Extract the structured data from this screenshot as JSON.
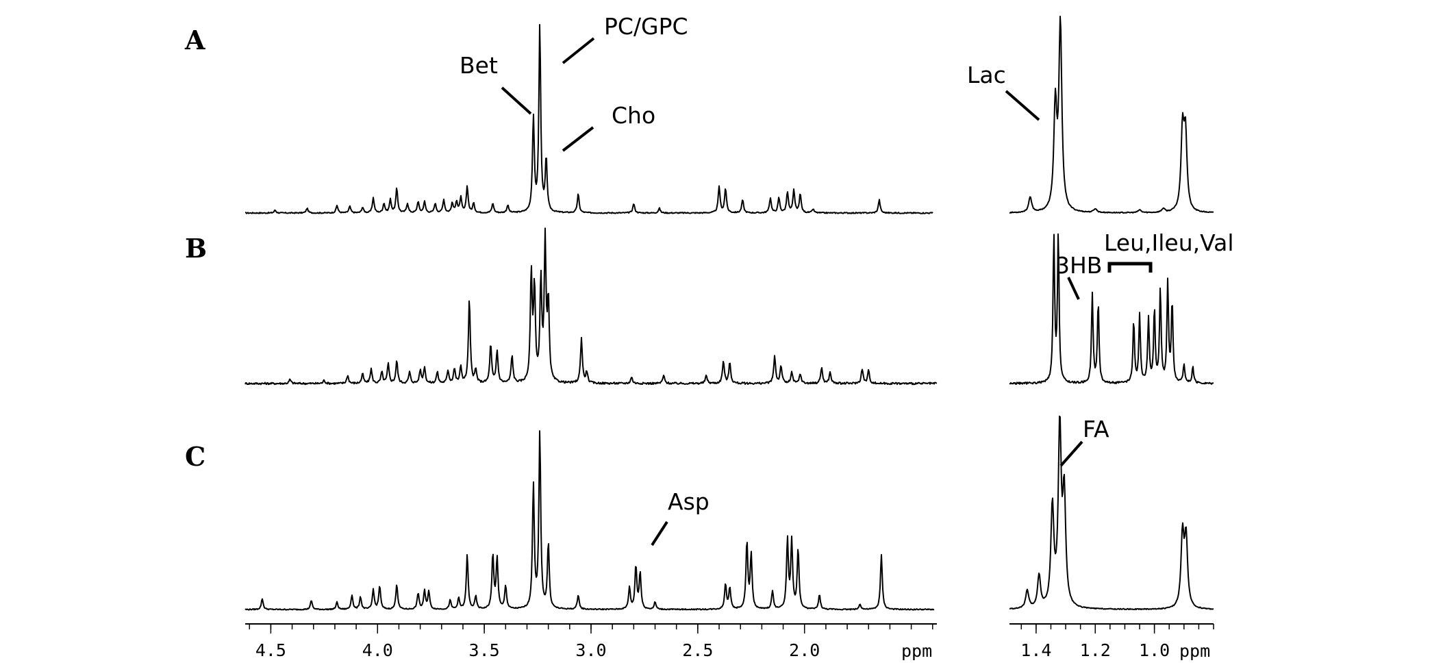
{
  "chart_data": {
    "type": "line",
    "x_unit": "ppm",
    "x_reversed": true,
    "grid": false,
    "axes": [
      {
        "id": "left",
        "xlim": [
          4.62,
          1.38
        ],
        "ticks": [
          {
            "value": 4.5,
            "label": "4.5"
          },
          {
            "value": 4.0,
            "label": "4.0"
          },
          {
            "value": 3.5,
            "label": "3.5"
          },
          {
            "value": 3.0,
            "label": "3.0"
          },
          {
            "value": 2.5,
            "label": "2.5"
          },
          {
            "value": 2.0,
            "label": "2.0"
          }
        ],
        "unit_label": "ppm"
      },
      {
        "id": "right",
        "xlim": [
          1.49,
          0.8
        ],
        "ticks": [
          {
            "value": 1.4,
            "label": "1.4"
          },
          {
            "value": 1.2,
            "label": "1.2"
          },
          {
            "value": 1.0,
            "label": "1.0"
          }
        ],
        "unit_label": "ppm"
      }
    ],
    "panels": [
      {
        "label": "A",
        "left_peaks": [
          {
            "x": 4.48,
            "y": 0.015
          },
          {
            "x": 4.33,
            "y": 0.025
          },
          {
            "x": 4.19,
            "y": 0.04
          },
          {
            "x": 4.13,
            "y": 0.035
          },
          {
            "x": 4.07,
            "y": 0.03
          },
          {
            "x": 4.02,
            "y": 0.08
          },
          {
            "x": 3.97,
            "y": 0.05
          },
          {
            "x": 3.94,
            "y": 0.07
          },
          {
            "x": 3.91,
            "y": 0.13
          },
          {
            "x": 3.86,
            "y": 0.05
          },
          {
            "x": 3.81,
            "y": 0.06
          },
          {
            "x": 3.78,
            "y": 0.06
          },
          {
            "x": 3.73,
            "y": 0.05
          },
          {
            "x": 3.69,
            "y": 0.07
          },
          {
            "x": 3.65,
            "y": 0.05
          },
          {
            "x": 3.63,
            "y": 0.06
          },
          {
            "x": 3.61,
            "y": 0.08
          },
          {
            "x": 3.58,
            "y": 0.14
          },
          {
            "x": 3.55,
            "y": 0.05
          },
          {
            "x": 3.46,
            "y": 0.05
          },
          {
            "x": 3.39,
            "y": 0.04
          },
          {
            "x": 3.27,
            "y": 0.5
          },
          {
            "x": 3.24,
            "y": 0.99
          },
          {
            "x": 3.21,
            "y": 0.28
          },
          {
            "x": 3.06,
            "y": 0.1
          },
          {
            "x": 2.8,
            "y": 0.05
          },
          {
            "x": 2.68,
            "y": 0.025
          },
          {
            "x": 2.4,
            "y": 0.14
          },
          {
            "x": 2.37,
            "y": 0.13
          },
          {
            "x": 2.29,
            "y": 0.07
          },
          {
            "x": 2.16,
            "y": 0.08
          },
          {
            "x": 2.12,
            "y": 0.08
          },
          {
            "x": 2.08,
            "y": 0.11
          },
          {
            "x": 2.05,
            "y": 0.12
          },
          {
            "x": 2.02,
            "y": 0.1
          },
          {
            "x": 1.96,
            "y": 0.02
          },
          {
            "x": 1.65,
            "y": 0.07
          }
        ],
        "right_peaks": [
          {
            "x": 1.42,
            "y": 0.08
          },
          {
            "x": 1.335,
            "y": 0.55
          },
          {
            "x": 1.318,
            "y": 0.99
          },
          {
            "x": 1.2,
            "y": 0.02
          },
          {
            "x": 1.05,
            "y": 0.015
          },
          {
            "x": 0.97,
            "y": 0.02
          },
          {
            "x": 0.905,
            "y": 0.42
          },
          {
            "x": 0.895,
            "y": 0.4
          }
        ],
        "annotations": [
          {
            "text": "Bet",
            "ppm": 3.27
          },
          {
            "text": "PC/GPC",
            "ppm": 3.24
          },
          {
            "text": "Cho",
            "ppm": 3.21
          },
          {
            "text": "Lac",
            "ppm": 1.33
          }
        ]
      },
      {
        "label": "B",
        "left_peaks": [
          {
            "x": 4.41,
            "y": 0.025
          },
          {
            "x": 4.25,
            "y": 0.02
          },
          {
            "x": 4.14,
            "y": 0.05
          },
          {
            "x": 4.07,
            "y": 0.06
          },
          {
            "x": 4.03,
            "y": 0.09
          },
          {
            "x": 3.98,
            "y": 0.07
          },
          {
            "x": 3.95,
            "y": 0.12
          },
          {
            "x": 3.91,
            "y": 0.14
          },
          {
            "x": 3.85,
            "y": 0.07
          },
          {
            "x": 3.8,
            "y": 0.08
          },
          {
            "x": 3.78,
            "y": 0.1
          },
          {
            "x": 3.72,
            "y": 0.07
          },
          {
            "x": 3.67,
            "y": 0.08
          },
          {
            "x": 3.64,
            "y": 0.09
          },
          {
            "x": 3.61,
            "y": 0.1
          },
          {
            "x": 3.57,
            "y": 0.52
          },
          {
            "x": 3.54,
            "y": 0.08
          },
          {
            "x": 3.47,
            "y": 0.24
          },
          {
            "x": 3.44,
            "y": 0.2
          },
          {
            "x": 3.37,
            "y": 0.17
          },
          {
            "x": 3.28,
            "y": 0.67
          },
          {
            "x": 3.265,
            "y": 0.58
          },
          {
            "x": 3.235,
            "y": 0.62
          },
          {
            "x": 3.215,
            "y": 0.86
          },
          {
            "x": 3.2,
            "y": 0.48
          },
          {
            "x": 3.045,
            "y": 0.28
          },
          {
            "x": 3.02,
            "y": 0.07
          },
          {
            "x": 2.81,
            "y": 0.04
          },
          {
            "x": 2.66,
            "y": 0.05
          },
          {
            "x": 2.46,
            "y": 0.05
          },
          {
            "x": 2.38,
            "y": 0.14
          },
          {
            "x": 2.35,
            "y": 0.13
          },
          {
            "x": 2.14,
            "y": 0.17
          },
          {
            "x": 2.11,
            "y": 0.11
          },
          {
            "x": 2.06,
            "y": 0.07
          },
          {
            "x": 2.02,
            "y": 0.06
          },
          {
            "x": 1.92,
            "y": 0.1
          },
          {
            "x": 1.88,
            "y": 0.07
          },
          {
            "x": 1.73,
            "y": 0.09
          },
          {
            "x": 1.7,
            "y": 0.08
          }
        ],
        "right_peaks": [
          {
            "x": 1.34,
            "y": 0.9
          },
          {
            "x": 1.325,
            "y": 0.92
          },
          {
            "x": 1.21,
            "y": 0.55
          },
          {
            "x": 1.19,
            "y": 0.5
          },
          {
            "x": 1.07,
            "y": 0.38
          },
          {
            "x": 1.05,
            "y": 0.42
          },
          {
            "x": 1.02,
            "y": 0.4
          },
          {
            "x": 1.0,
            "y": 0.45
          },
          {
            "x": 0.98,
            "y": 0.58
          },
          {
            "x": 0.955,
            "y": 0.62
          },
          {
            "x": 0.94,
            "y": 0.5
          },
          {
            "x": 0.9,
            "y": 0.12
          },
          {
            "x": 0.87,
            "y": 0.1
          }
        ],
        "annotations": [
          {
            "text": "3HB",
            "ppm": 1.2
          },
          {
            "text": "Leu,Ileu,Val",
            "ppm_range": [
              1.09,
              0.95
            ]
          }
        ]
      },
      {
        "label": "C",
        "left_peaks": [
          {
            "x": 4.54,
            "y": 0.06
          },
          {
            "x": 4.31,
            "y": 0.05
          },
          {
            "x": 4.19,
            "y": 0.04
          },
          {
            "x": 4.12,
            "y": 0.08
          },
          {
            "x": 4.08,
            "y": 0.07
          },
          {
            "x": 4.02,
            "y": 0.11
          },
          {
            "x": 3.99,
            "y": 0.13
          },
          {
            "x": 3.91,
            "y": 0.14
          },
          {
            "x": 3.81,
            "y": 0.09
          },
          {
            "x": 3.78,
            "y": 0.1
          },
          {
            "x": 3.76,
            "y": 0.1
          },
          {
            "x": 3.66,
            "y": 0.05
          },
          {
            "x": 3.62,
            "y": 0.06
          },
          {
            "x": 3.58,
            "y": 0.3
          },
          {
            "x": 3.54,
            "y": 0.07
          },
          {
            "x": 3.46,
            "y": 0.3
          },
          {
            "x": 3.44,
            "y": 0.28
          },
          {
            "x": 3.4,
            "y": 0.13
          },
          {
            "x": 3.27,
            "y": 0.68
          },
          {
            "x": 3.24,
            "y": 0.97
          },
          {
            "x": 3.2,
            "y": 0.36
          },
          {
            "x": 3.06,
            "y": 0.08
          },
          {
            "x": 2.82,
            "y": 0.12
          },
          {
            "x": 2.79,
            "y": 0.24
          },
          {
            "x": 2.77,
            "y": 0.2
          },
          {
            "x": 2.7,
            "y": 0.04
          },
          {
            "x": 2.37,
            "y": 0.14
          },
          {
            "x": 2.35,
            "y": 0.12
          },
          {
            "x": 2.27,
            "y": 0.37
          },
          {
            "x": 2.25,
            "y": 0.3
          },
          {
            "x": 2.15,
            "y": 0.1
          },
          {
            "x": 2.08,
            "y": 0.38
          },
          {
            "x": 2.06,
            "y": 0.37
          },
          {
            "x": 2.03,
            "y": 0.33
          },
          {
            "x": 1.93,
            "y": 0.08
          },
          {
            "x": 1.74,
            "y": 0.03
          },
          {
            "x": 1.64,
            "y": 0.3
          }
        ],
        "right_peaks": [
          {
            "x": 1.43,
            "y": 0.1
          },
          {
            "x": 1.39,
            "y": 0.18
          },
          {
            "x": 1.345,
            "y": 0.55
          },
          {
            "x": 1.32,
            "y": 0.98
          },
          {
            "x": 1.305,
            "y": 0.6
          },
          {
            "x": 0.905,
            "y": 0.4
          },
          {
            "x": 0.893,
            "y": 0.38
          }
        ],
        "annotations": [
          {
            "text": "Asp",
            "ppm": 2.79
          },
          {
            "text": "FA",
            "ppm": 1.31
          }
        ]
      }
    ]
  }
}
